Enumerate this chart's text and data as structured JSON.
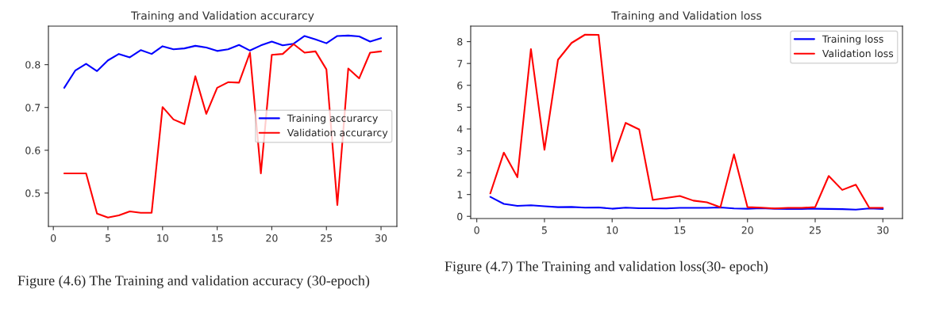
{
  "chart_data": [
    {
      "type": "line",
      "title": "Training and Validation accurarcy",
      "x": [
        1,
        2,
        3,
        4,
        5,
        6,
        7,
        8,
        9,
        10,
        11,
        12,
        13,
        14,
        15,
        16,
        17,
        18,
        19,
        20,
        21,
        22,
        23,
        24,
        25,
        26,
        27,
        28,
        29,
        30
      ],
      "series": [
        {
          "name": "Training accurarcy",
          "color": "#0000ff",
          "values": [
            0.746,
            0.786,
            0.802,
            0.785,
            0.81,
            0.825,
            0.817,
            0.834,
            0.825,
            0.843,
            0.836,
            0.838,
            0.844,
            0.84,
            0.832,
            0.836,
            0.846,
            0.833,
            0.845,
            0.854,
            0.845,
            0.849,
            0.867,
            0.859,
            0.85,
            0.867,
            0.868,
            0.866,
            0.854,
            0.862
          ]
        },
        {
          "name": "Validation accurarcy",
          "color": "#ff0000",
          "values": [
            0.546,
            0.546,
            0.546,
            0.452,
            0.443,
            0.448,
            0.457,
            0.454,
            0.454,
            0.701,
            0.672,
            0.661,
            0.773,
            0.685,
            0.746,
            0.759,
            0.758,
            0.828,
            0.546,
            0.823,
            0.825,
            0.848,
            0.828,
            0.831,
            0.789,
            0.472,
            0.791,
            0.768,
            0.828,
            0.831
          ]
        }
      ],
      "xlim": [
        -0.45,
        31.45
      ],
      "ylim": [
        0.422,
        0.89
      ],
      "xticks": [
        0,
        5,
        10,
        15,
        20,
        25,
        30
      ],
      "yticks": [
        0.5,
        0.6,
        0.7,
        0.8
      ],
      "legend": "center right",
      "annotations": [
        "Figure (4.6) The Training and validation accuracy (30-epoch)"
      ]
    },
    {
      "type": "line",
      "title": "Training and Validation loss",
      "x": [
        1,
        2,
        3,
        4,
        5,
        6,
        7,
        8,
        9,
        10,
        11,
        12,
        13,
        14,
        15,
        16,
        17,
        18,
        19,
        20,
        21,
        22,
        23,
        24,
        25,
        26,
        27,
        28,
        29,
        30
      ],
      "series": [
        {
          "name": "Training loss",
          "color": "#0000ff",
          "values": [
            0.89,
            0.57,
            0.48,
            0.51,
            0.46,
            0.42,
            0.43,
            0.4,
            0.41,
            0.35,
            0.4,
            0.37,
            0.37,
            0.36,
            0.39,
            0.39,
            0.39,
            0.41,
            0.36,
            0.35,
            0.37,
            0.35,
            0.34,
            0.34,
            0.35,
            0.34,
            0.33,
            0.31,
            0.36,
            0.34
          ]
        },
        {
          "name": "Validation loss",
          "color": "#ff0000",
          "values": [
            1.05,
            2.92,
            1.79,
            7.66,
            3.05,
            7.17,
            7.94,
            8.32,
            8.31,
            2.51,
            4.28,
            3.98,
            0.75,
            0.84,
            0.93,
            0.72,
            0.64,
            0.42,
            2.84,
            0.42,
            0.4,
            0.36,
            0.39,
            0.39,
            0.42,
            1.85,
            1.21,
            1.45,
            0.39,
            0.39
          ]
        }
      ],
      "xlim": [
        -0.45,
        31.45
      ],
      "ylim": [
        -0.1,
        8.71
      ],
      "xticks": [
        0,
        5,
        10,
        15,
        20,
        25,
        30
      ],
      "yticks": [
        0,
        1,
        2,
        3,
        4,
        5,
        6,
        7,
        8
      ],
      "legend": "upper right",
      "annotations": [
        "Figure (4.7) The Training and validation loss(30- epoch)"
      ]
    }
  ]
}
